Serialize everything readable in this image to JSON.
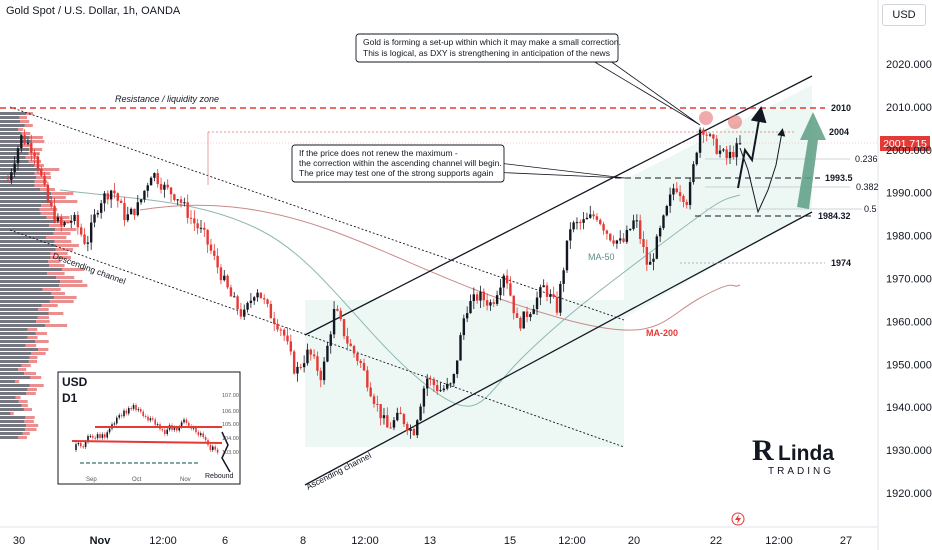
{
  "header": {
    "title": "Gold Spot / U.S. Dollar, 1h, OANDA",
    "currency_button": "USD"
  },
  "colors": {
    "up": "#131722",
    "down": "#e53935",
    "resistance": "#e53935",
    "ma50": "#8fb7b3",
    "ma200": "#c98a8a",
    "channel_fill": "#e8f4ef",
    "arrow": "#5c9e84",
    "price_tag": "#e53935"
  },
  "chart_data": {
    "type": "candlestick",
    "title": "Gold Spot / U.S. Dollar, 1h, OANDA",
    "y_ticks": [
      2020,
      2010,
      2000,
      1990,
      1980,
      1970,
      1960,
      1950,
      1940,
      1930,
      1920
    ],
    "y_tick_labels": [
      "2020.000",
      "2010.000",
      "2000.000",
      "1990.000",
      "1980.000",
      "1970.000",
      "1960.000",
      "1950.000",
      "1940.000",
      "1930.000",
      "1920.000"
    ],
    "x_ticks": [
      "30",
      "Nov",
      "12:00",
      "6",
      "8",
      "12:00",
      "13",
      "15",
      "12:00",
      "20",
      "22",
      "12:00",
      "27"
    ],
    "current_price": "2001.715",
    "levels": [
      {
        "label": "2010",
        "value": 2010
      },
      {
        "label": "2004",
        "value": 2004
      },
      {
        "label": "1993.5",
        "value": 1993.5
      },
      {
        "label": "1984.32",
        "value": 1984.32
      },
      {
        "label": "1974",
        "value": 1974
      }
    ],
    "fib_labels": [
      {
        "label": "0.236",
        "value": 1997.8
      },
      {
        "label": "0.382",
        "value": 1991.2
      },
      {
        "label": "0.5",
        "value": 1986.8
      }
    ],
    "indicators": [
      "MA-50",
      "MA-200"
    ],
    "channel_labels": [
      "Descending channel",
      "Ascending channel"
    ],
    "zone_label": "Resistance / liquidity zone",
    "price_path": [
      [
        0,
        1993
      ],
      [
        1,
        2003
      ],
      [
        2,
        2000
      ],
      [
        3,
        1988
      ],
      [
        4,
        1982
      ],
      [
        5,
        1984
      ],
      [
        6,
        1978
      ],
      [
        7,
        1988
      ],
      [
        8,
        1991
      ],
      [
        9,
        1984
      ],
      [
        10,
        1987
      ],
      [
        11,
        1995
      ],
      [
        12,
        1991
      ],
      [
        13,
        1989
      ],
      [
        14,
        1984
      ],
      [
        15,
        1980
      ],
      [
        16,
        1973
      ],
      [
        17,
        1966
      ],
      [
        18,
        1961
      ],
      [
        19,
        1968
      ],
      [
        20,
        1962
      ],
      [
        21,
        1958
      ],
      [
        22,
        1948
      ],
      [
        23,
        1953
      ],
      [
        24,
        1947
      ],
      [
        25,
        1963
      ],
      [
        26,
        1955
      ],
      [
        27,
        1950
      ],
      [
        28,
        1942
      ],
      [
        29,
        1935
      ],
      [
        30,
        1938
      ],
      [
        31,
        1934
      ],
      [
        32,
        1947
      ],
      [
        33,
        1944
      ],
      [
        34,
        1945
      ],
      [
        35,
        1963
      ],
      [
        36,
        1966
      ],
      [
        37,
        1964
      ],
      [
        38,
        1972
      ],
      [
        39,
        1959
      ],
      [
        40,
        1963
      ],
      [
        41,
        1968
      ],
      [
        42,
        1963
      ],
      [
        43,
        1982
      ],
      [
        44,
        1983
      ],
      [
        45,
        1985
      ],
      [
        46,
        1980
      ],
      [
        47,
        1978
      ],
      [
        48,
        1984
      ],
      [
        49,
        1972
      ],
      [
        50,
        1982
      ],
      [
        51,
        1992
      ],
      [
        52,
        1988
      ],
      [
        53,
        2006
      ],
      [
        54,
        2001
      ],
      [
        55,
        1998
      ],
      [
        56,
        2001
      ]
    ]
  },
  "annotations": {
    "top_note": [
      "Gold is forming a set-up within which it may make a small correction.",
      "This is logical, as DXY is strengthening in anticipation of the news"
    ],
    "mid_note": [
      "If the price does not renew the maximum -",
      "the correction within the ascending channel will begin.",
      "The price may test one of the strong supports again"
    ]
  },
  "inset": {
    "currency": "USD",
    "timeframe": "D1",
    "y_ticks": [
      "107.00",
      "106.00",
      "105.00",
      "104.00",
      "103.00"
    ],
    "x_ticks": [
      "Sep",
      "Oct",
      "Nov"
    ],
    "note": "Rebound"
  },
  "logo": {
    "text": "Linda",
    "subtext": "TRADING"
  }
}
